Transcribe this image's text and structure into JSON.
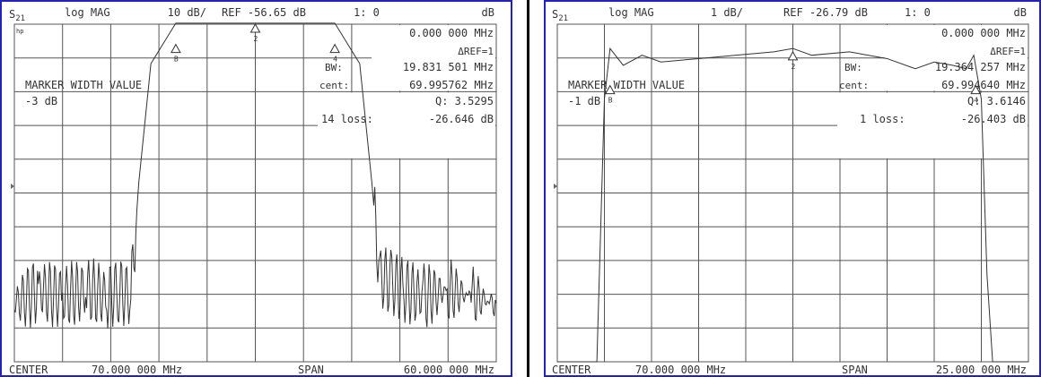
{
  "chart_data": [
    {
      "type": "line",
      "title": "",
      "header": {
        "param": "S21",
        "format": "log MAG",
        "scale": "10 dB/",
        "ref": "REF -56.65 dB",
        "channel": "1: 0",
        "unit": "dB"
      },
      "readouts": {
        "freq": "0.000 000 MHz",
        "delta_ref": "ΔREF=1",
        "bw_label": "BW:",
        "bw_value": "19.831 501 MHz",
        "cent_label": "cent:",
        "cent_value": "69.995762 MHz",
        "q": "Q: 3.5295",
        "loss_label": "14 loss:",
        "loss_value": "-26.646 dB"
      },
      "marker_title": "MARKER WIDTH VALUE",
      "marker_value": "-3 dB",
      "hp_tag": "hp",
      "footer": {
        "center_label": "CENTER",
        "center_value": "70.000 000 MHz",
        "span_label": "SPAN",
        "span_value": "60.000 000 MHz"
      },
      "xlim": [
        40,
        100
      ],
      "ylim": [
        -106.65,
        -56.65
      ],
      "x_unit": "MHz",
      "y_unit": "dB",
      "grid": true,
      "series": [
        {
          "x": [
            40,
            43,
            46,
            49,
            51.5,
            53,
            54.5,
            55.5,
            57,
            60.1,
            65,
            70,
            75,
            79.9,
            83,
            84.5,
            85.5,
            87,
            88.5,
            91,
            94,
            97,
            100
          ],
          "y": [
            -98,
            -96,
            -97,
            -96,
            -97,
            -96,
            -97,
            -80,
            -62.5,
            -56.5,
            -56.5,
            -56.5,
            -56.5,
            -56.5,
            -62.5,
            -80,
            -94,
            -95,
            -96,
            -97,
            -96,
            -97,
            -98
          ]
        }
      ],
      "markers": [
        {
          "label": "B",
          "x": 60.1,
          "y": -59.65
        },
        {
          "label": "2",
          "x": 70.0,
          "y": -56.65
        },
        {
          "label": "4",
          "x": 79.9,
          "y": -59.65
        }
      ]
    },
    {
      "type": "line",
      "title": "",
      "header": {
        "param": "S21",
        "format": "log MAG",
        "scale": "1 dB/",
        "ref": "REF -26.79 dB",
        "channel": "1: 0",
        "unit": "dB"
      },
      "readouts": {
        "freq": "0.000 000 MHz",
        "delta_ref": "ΔREF=1",
        "bw_label": "BW:",
        "bw_value": "19.364 257 MHz",
        "cent_label": "cent:",
        "cent_value": "69.994640 MHz",
        "q": "Q: 3.6146",
        "loss_label": "1 loss:",
        "loss_value": "-26.403 dB"
      },
      "marker_title": "MARKER WIDTH VALUE",
      "marker_value": "-1 dB",
      "footer": {
        "center_label": "CENTER",
        "center_value": "70.000 000 MHz",
        "span_label": "SPAN",
        "span_value": "25.000 000 MHz"
      },
      "xlim": [
        57.5,
        82.5
      ],
      "ylim": [
        -31.79,
        -26.79
      ],
      "x_unit": "MHz",
      "y_unit": "dB",
      "grid": true,
      "series": [
        {
          "x": [
            57.5,
            59.6,
            60.0,
            60.3,
            61.0,
            62.0,
            63.0,
            65.0,
            67.0,
            69.0,
            70.0,
            71.0,
            73.0,
            75.0,
            76.5,
            77.5,
            78.5,
            79.2,
            79.6,
            80.0,
            80.3,
            80.6,
            82.5
          ],
          "y": [
            -31.79,
            -31.79,
            -27.9,
            -27.15,
            -27.4,
            -27.25,
            -27.35,
            -27.3,
            -27.25,
            -27.2,
            -27.15,
            -27.25,
            -27.2,
            -27.3,
            -27.45,
            -27.35,
            -27.4,
            -27.45,
            -27.25,
            -27.9,
            -30.5,
            -31.79,
            -31.79
          ]
        }
      ],
      "markers": [
        {
          "label": "B",
          "x": 60.3,
          "y": -27.7
        },
        {
          "label": "2",
          "x": 70.0,
          "y": -27.2
        },
        {
          "label": "4",
          "x": 79.7,
          "y": -27.7
        }
      ]
    }
  ]
}
